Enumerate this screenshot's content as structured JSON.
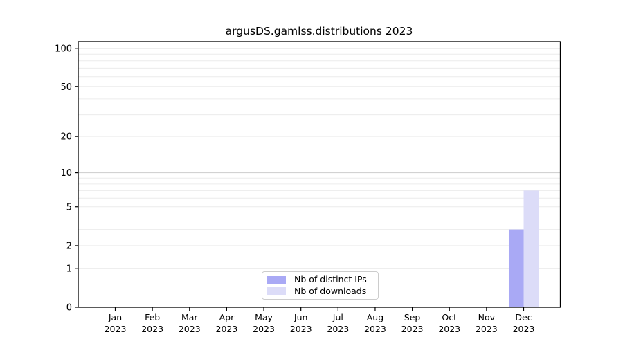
{
  "title": "argusDS.gamlss.distributions 2023",
  "chart_data": {
    "type": "bar",
    "title": "argusDS.gamlss.distributions 2023",
    "yscale": "log1p",
    "xlabel": "",
    "ylabel": "",
    "categories": [
      "Jan",
      "Feb",
      "Mar",
      "Apr",
      "May",
      "Jun",
      "Jul",
      "Aug",
      "Sep",
      "Oct",
      "Nov",
      "Dec"
    ],
    "category_year": "2023",
    "series": [
      {
        "name": "Nb of distinct IPs",
        "color": "#a9a9f5",
        "values": [
          0,
          0,
          0,
          0,
          0,
          0,
          0,
          0,
          0,
          0,
          0,
          3
        ]
      },
      {
        "name": "Nb of downloads",
        "color": "#dcdcf8",
        "values": [
          0,
          0,
          0,
          0,
          0,
          0,
          0,
          0,
          0,
          0,
          0,
          7
        ]
      }
    ],
    "yticks": [
      0,
      1,
      2,
      5,
      10,
      20,
      50,
      100
    ],
    "ytick_labels": [
      "0",
      "1",
      "2",
      "5",
      "10",
      "20",
      "50",
      "100"
    ],
    "ylim": [
      0,
      113
    ],
    "grid": true,
    "gridlines_minor": [
      2,
      3,
      4,
      5,
      6,
      7,
      8,
      9,
      20,
      30,
      40,
      50,
      60,
      70,
      80,
      90
    ],
    "gridlines_major": [
      1,
      10,
      100
    ],
    "legend_position": "bottom-center"
  },
  "colors": {
    "background": "#ffffff",
    "spine": "#000000",
    "text": "#000000",
    "grid_minor": "#ececec",
    "grid_major": "#d2d2d2",
    "legend_border": "#cccccc",
    "legend_bg": "#ffffff"
  }
}
